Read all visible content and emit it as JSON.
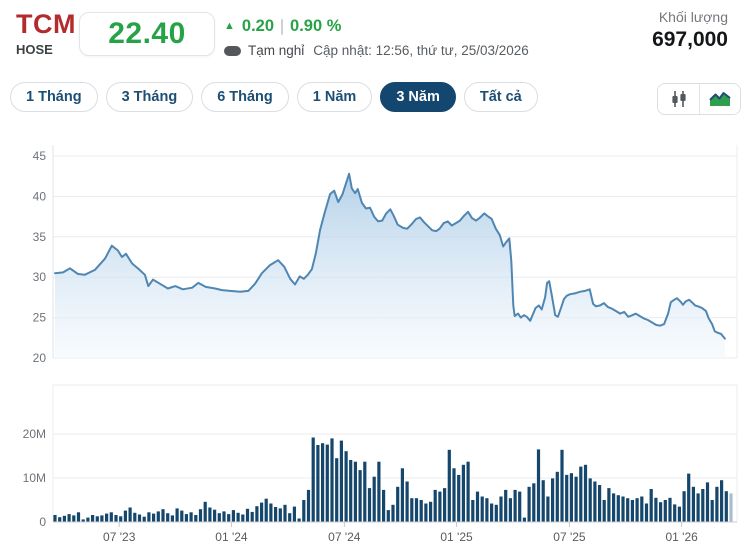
{
  "header": {
    "ticker": "TCM",
    "exchange": "HOSE",
    "price": "22.40",
    "up_arrow": "▲",
    "change": "0.20",
    "change_pct": "0.90 %",
    "status_label": "Tạm nghỉ",
    "updated": "Cập nhật: 12:56, thứ tư, 25/03/2026",
    "volume_label": "Khối lượng",
    "volume_value": "697,000",
    "up_color": "#27a347",
    "ticker_color": "#b42b2e"
  },
  "toolbar": {
    "ranges": [
      {
        "label": "1 Tháng",
        "active": false
      },
      {
        "label": "3 Tháng",
        "active": false
      },
      {
        "label": "6 Tháng",
        "active": false
      },
      {
        "label": "1 Năm",
        "active": false
      },
      {
        "label": "3 Năm",
        "active": true
      },
      {
        "label": "Tất cả",
        "active": false
      }
    ],
    "chart_type_icons": [
      "candlestick-icon",
      "area-chart-icon"
    ],
    "active_range_color": "#14476f"
  },
  "chart_data": [
    {
      "type": "area",
      "ylim": [
        20,
        45
      ],
      "yticks": [
        45,
        40,
        35,
        30,
        25,
        20
      ],
      "line_color": "#4f86b2",
      "fill_top_color": "#9cc2e2",
      "points": [
        [
          0.0,
          30.5
        ],
        [
          0.012,
          30.6
        ],
        [
          0.022,
          31.1
        ],
        [
          0.034,
          30.4
        ],
        [
          0.044,
          30.3
        ],
        [
          0.059,
          30.9
        ],
        [
          0.074,
          32.3
        ],
        [
          0.084,
          33.9
        ],
        [
          0.093,
          33.3
        ],
        [
          0.099,
          32.5
        ],
        [
          0.105,
          32.9
        ],
        [
          0.114,
          31.7
        ],
        [
          0.124,
          31.0
        ],
        [
          0.133,
          30.3
        ],
        [
          0.138,
          28.9
        ],
        [
          0.145,
          29.7
        ],
        [
          0.155,
          29.2
        ],
        [
          0.167,
          28.6
        ],
        [
          0.178,
          28.9
        ],
        [
          0.189,
          28.5
        ],
        [
          0.203,
          28.7
        ],
        [
          0.212,
          29.3
        ],
        [
          0.223,
          28.8
        ],
        [
          0.237,
          28.6
        ],
        [
          0.247,
          28.4
        ],
        [
          0.259,
          28.3
        ],
        [
          0.274,
          28.2
        ],
        [
          0.286,
          28.3
        ],
        [
          0.296,
          29.2
        ],
        [
          0.306,
          30.5
        ],
        [
          0.318,
          31.5
        ],
        [
          0.33,
          32.1
        ],
        [
          0.339,
          31.3
        ],
        [
          0.348,
          29.8
        ],
        [
          0.355,
          29.1
        ],
        [
          0.362,
          30.1
        ],
        [
          0.368,
          29.8
        ],
        [
          0.374,
          30.3
        ],
        [
          0.38,
          31.0
        ],
        [
          0.386,
          33.0
        ],
        [
          0.392,
          35.8
        ],
        [
          0.399,
          38.0
        ],
        [
          0.407,
          40.3
        ],
        [
          0.413,
          40.7
        ],
        [
          0.419,
          39.3
        ],
        [
          0.425,
          40.2
        ],
        [
          0.43,
          41.5
        ],
        [
          0.435,
          42.8
        ],
        [
          0.439,
          41.0
        ],
        [
          0.444,
          40.4
        ],
        [
          0.448,
          40.9
        ],
        [
          0.454,
          39.2
        ],
        [
          0.46,
          38.5
        ],
        [
          0.466,
          38.6
        ],
        [
          0.472,
          37.5
        ],
        [
          0.478,
          36.9
        ],
        [
          0.484,
          37.0
        ],
        [
          0.49,
          37.9
        ],
        [
          0.496,
          38.4
        ],
        [
          0.501,
          37.6
        ],
        [
          0.507,
          36.5
        ],
        [
          0.515,
          36.1
        ],
        [
          0.521,
          36.0
        ],
        [
          0.528,
          36.6
        ],
        [
          0.534,
          37.2
        ],
        [
          0.54,
          37.4
        ],
        [
          0.546,
          36.8
        ],
        [
          0.552,
          36.3
        ],
        [
          0.558,
          35.8
        ],
        [
          0.564,
          35.7
        ],
        [
          0.569,
          36.0
        ],
        [
          0.575,
          36.7
        ],
        [
          0.581,
          36.9
        ],
        [
          0.587,
          36.4
        ],
        [
          0.593,
          36.7
        ],
        [
          0.599,
          37.0
        ],
        [
          0.605,
          37.6
        ],
        [
          0.611,
          38.1
        ],
        [
          0.617,
          37.3
        ],
        [
          0.623,
          37.0
        ],
        [
          0.629,
          37.4
        ],
        [
          0.635,
          37.9
        ],
        [
          0.641,
          37.5
        ],
        [
          0.646,
          37.2
        ],
        [
          0.652,
          36.0
        ],
        [
          0.658,
          35.2
        ],
        [
          0.663,
          33.8
        ],
        [
          0.667,
          34.3
        ],
        [
          0.672,
          34.8
        ],
        [
          0.675,
          32.0
        ],
        [
          0.678,
          26.5
        ],
        [
          0.68,
          25.2
        ],
        [
          0.685,
          25.5
        ],
        [
          0.689,
          25.0
        ],
        [
          0.694,
          25.3
        ],
        [
          0.698,
          25.1
        ],
        [
          0.703,
          24.6
        ],
        [
          0.707,
          25.4
        ],
        [
          0.711,
          26.2
        ],
        [
          0.716,
          26.5
        ],
        [
          0.72,
          26.0
        ],
        [
          0.725,
          27.5
        ],
        [
          0.728,
          29.3
        ],
        [
          0.731,
          29.5
        ],
        [
          0.735,
          27.7
        ],
        [
          0.74,
          25.3
        ],
        [
          0.744,
          25.1
        ],
        [
          0.749,
          26.3
        ],
        [
          0.753,
          27.3
        ],
        [
          0.757,
          27.7
        ],
        [
          0.762,
          27.9
        ],
        [
          0.769,
          28.0
        ],
        [
          0.777,
          28.2
        ],
        [
          0.784,
          28.3
        ],
        [
          0.791,
          28.5
        ],
        [
          0.796,
          26.7
        ],
        [
          0.8,
          26.4
        ],
        [
          0.806,
          26.5
        ],
        [
          0.812,
          26.8
        ],
        [
          0.818,
          26.3
        ],
        [
          0.824,
          26.1
        ],
        [
          0.83,
          25.8
        ],
        [
          0.836,
          25.5
        ],
        [
          0.842,
          25.7
        ],
        [
          0.848,
          25.1
        ],
        [
          0.854,
          25.3
        ],
        [
          0.859,
          25.5
        ],
        [
          0.865,
          25.2
        ],
        [
          0.871,
          24.9
        ],
        [
          0.877,
          24.7
        ],
        [
          0.883,
          24.4
        ],
        [
          0.889,
          24.1
        ],
        [
          0.895,
          24.0
        ],
        [
          0.901,
          24.2
        ],
        [
          0.907,
          25.5
        ],
        [
          0.911,
          26.9
        ],
        [
          0.916,
          27.2
        ],
        [
          0.92,
          27.4
        ],
        [
          0.925,
          27.0
        ],
        [
          0.929,
          26.6
        ],
        [
          0.933,
          27.0
        ],
        [
          0.938,
          27.2
        ],
        [
          0.942,
          26.9
        ],
        [
          0.947,
          26.5
        ],
        [
          0.951,
          26.4
        ],
        [
          0.957,
          26.2
        ],
        [
          0.963,
          25.8
        ],
        [
          0.967,
          24.9
        ],
        [
          0.972,
          24.2
        ],
        [
          0.976,
          23.3
        ],
        [
          0.981,
          23.1
        ],
        [
          0.985,
          23.0
        ],
        [
          0.991,
          22.4
        ]
      ]
    },
    {
      "type": "bar",
      "ytick_labels": [
        "20M",
        "10M",
        "0"
      ],
      "yticks": [
        20,
        10,
        0
      ],
      "bar_color": "#15476d",
      "last_bar_faded": true,
      "x_ticks": [
        {
          "pos": 0.095,
          "label": "07 '23"
        },
        {
          "pos": 0.261,
          "label": "01 '24"
        },
        {
          "pos": 0.428,
          "label": "07 '24"
        },
        {
          "pos": 0.594,
          "label": "01 '25"
        },
        {
          "pos": 0.761,
          "label": "07 '25"
        },
        {
          "pos": 0.927,
          "label": "01 '26"
        }
      ],
      "values": [
        1.6,
        1.1,
        1.4,
        1.8,
        1.5,
        2.2,
        0.6,
        1.0,
        1.6,
        1.3,
        1.5,
        1.9,
        2.2,
        1.6,
        1.3,
        2.6,
        3.3,
        2.1,
        1.7,
        1.2,
        2.2,
        1.9,
        2.4,
        2.9,
        2.0,
        1.5,
        3.1,
        2.6,
        1.8,
        2.2,
        1.6,
        2.9,
        4.6,
        3.3,
        2.8,
        2.0,
        2.4,
        1.8,
        2.7,
        2.1,
        1.7,
        3.0,
        2.3,
        3.6,
        4.4,
        5.3,
        4.2,
        3.4,
        3.1,
        3.9,
        2.0,
        3.5,
        0.8,
        5.0,
        7.3,
        19.2,
        17.5,
        17.9,
        17.6,
        19.0,
        14.5,
        18.5,
        16.1,
        14.1,
        13.7,
        11.8,
        13.7,
        7.7,
        10.3,
        13.7,
        7.3,
        2.7,
        3.9,
        8.0,
        12.2,
        9.2,
        5.4,
        5.4,
        5.0,
        4.2,
        4.6,
        7.3,
        6.9,
        7.7,
        16.4,
        12.2,
        10.7,
        13.0,
        13.7,
        5.0,
        6.9,
        5.8,
        5.4,
        4.2,
        3.9,
        5.8,
        7.3,
        5.4,
        7.3,
        6.9,
        1.0,
        8.0,
        8.8,
        16.5,
        9.5,
        5.8,
        9.9,
        11.4,
        16.4,
        10.7,
        11.1,
        10.3,
        12.6,
        13.0,
        9.9,
        9.2,
        8.4,
        5.0,
        7.7,
        6.5,
        6.1,
        5.8,
        5.4,
        5.0,
        5.4,
        5.8,
        4.2,
        7.5,
        5.5,
        4.5,
        5.0,
        5.5,
        4.0,
        3.5,
        7.0,
        11.0,
        8.0,
        6.5,
        7.5,
        9.0,
        5.0,
        8.0,
        9.5,
        7.0,
        6.5
      ]
    }
  ]
}
